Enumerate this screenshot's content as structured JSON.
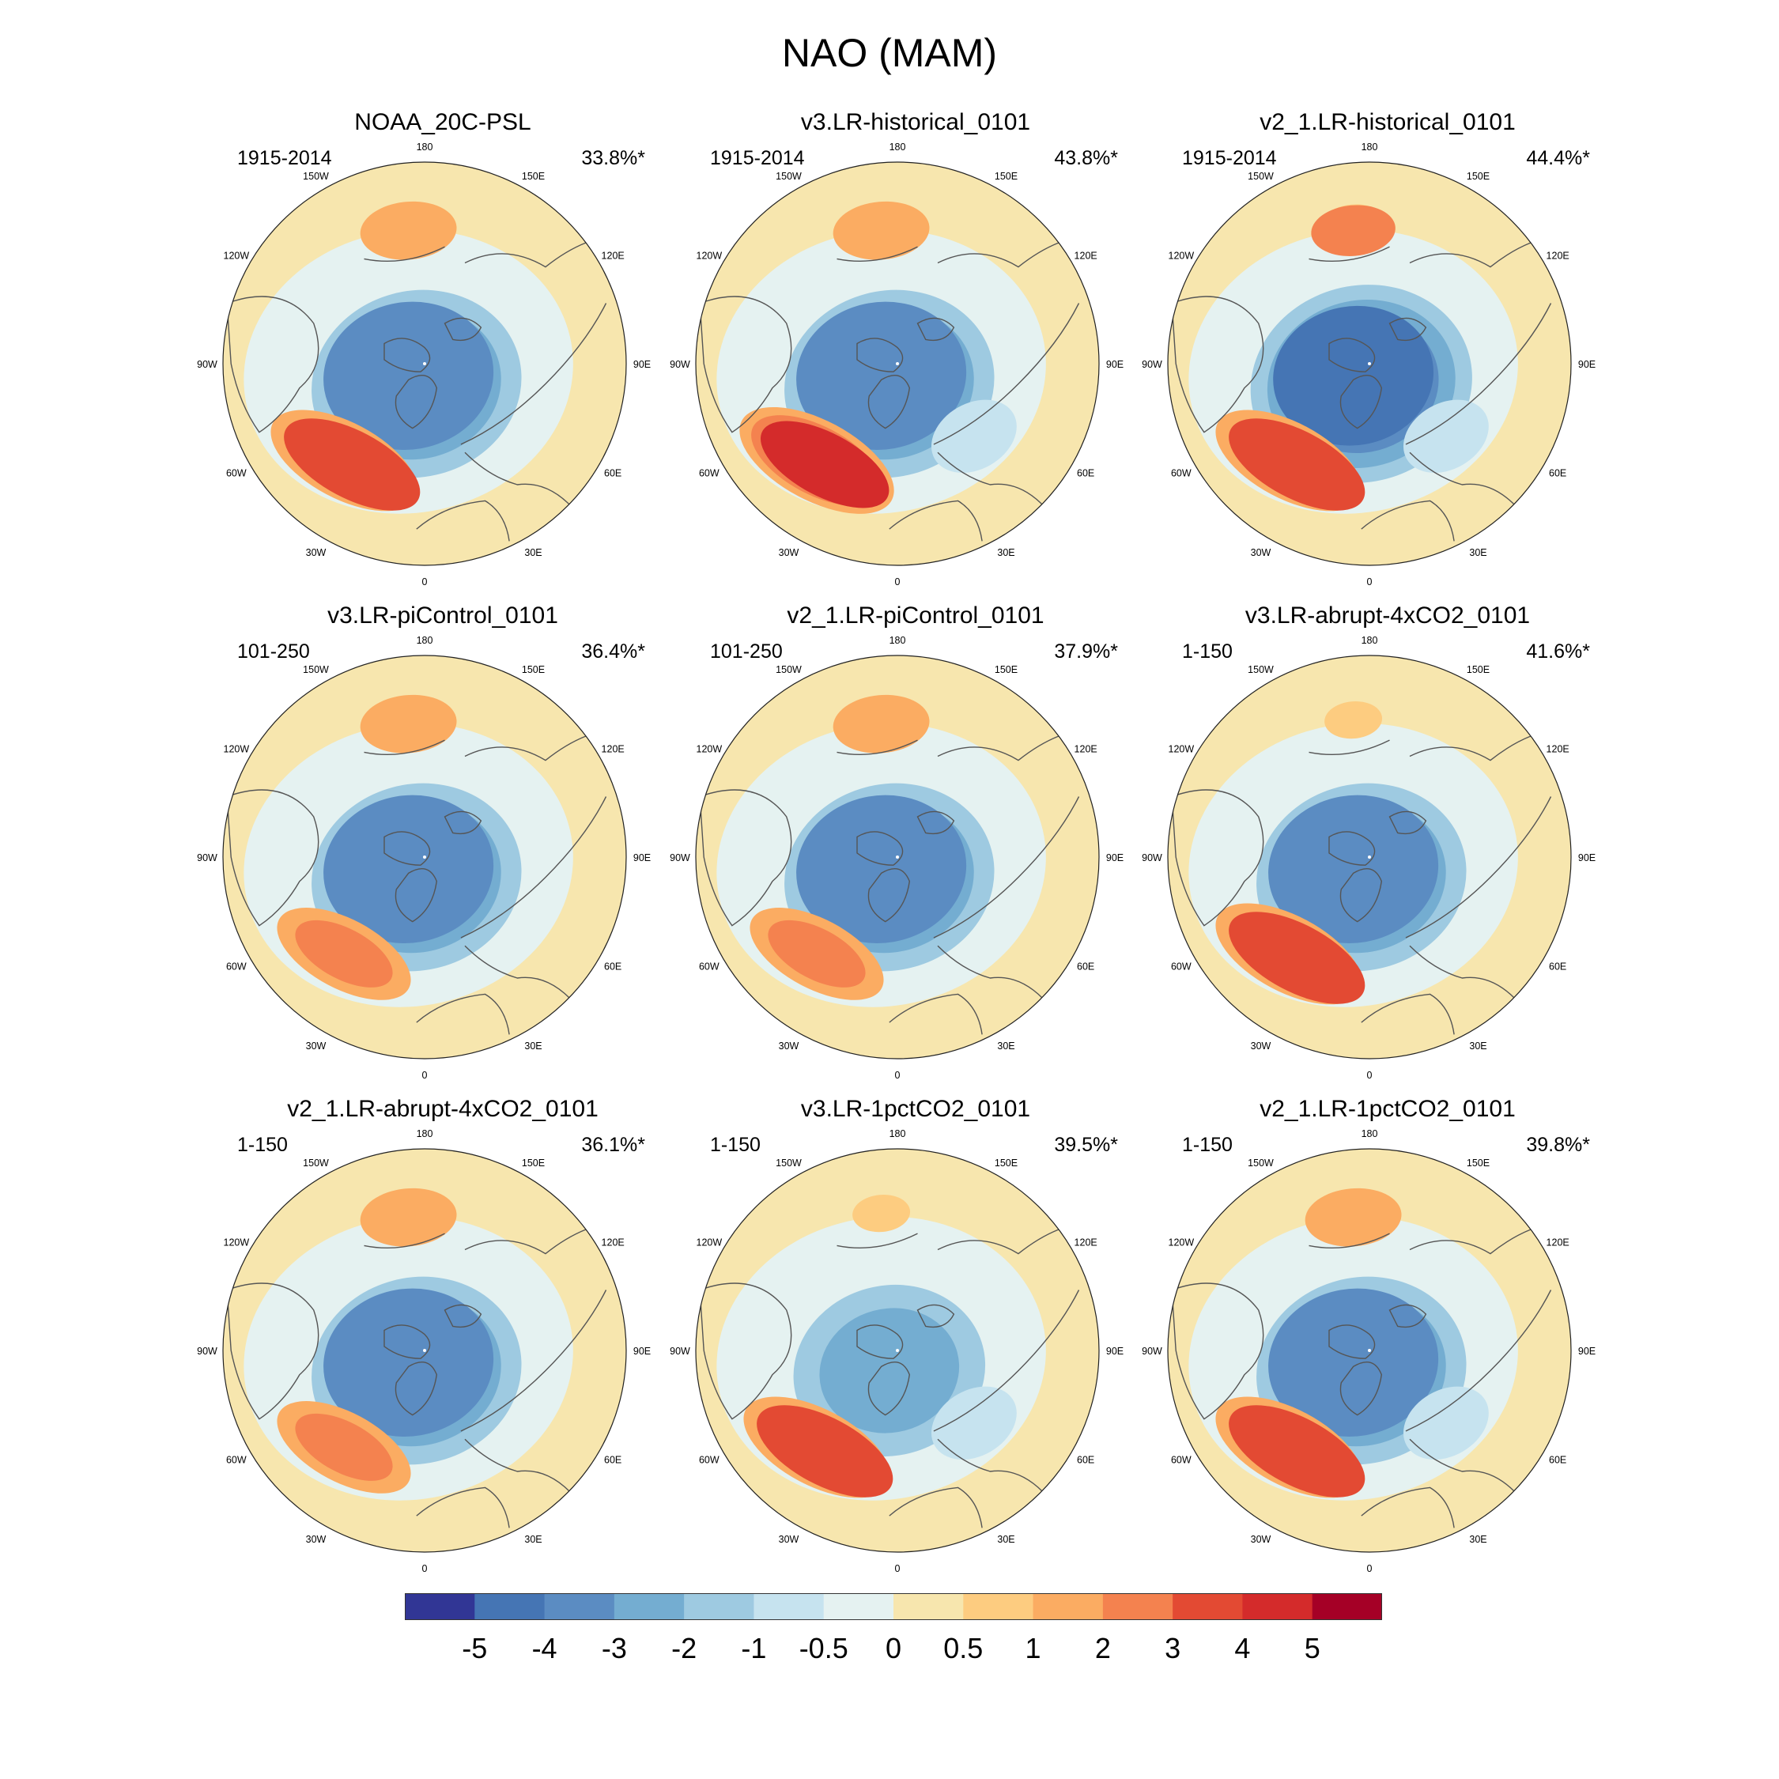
{
  "title": "NAO (MAM)",
  "chart_data": {
    "type": "heatmap",
    "projection": "north-polar-stereographic",
    "panels": [
      {
        "name": "NOAA_20C-PSL",
        "period": "1915-2014",
        "variance": "33.8%*",
        "features": {
          "low": -3.6,
          "azores_high": 3.2,
          "pacific_high": 1.2,
          "ne_atlantic_low": 0.2
        }
      },
      {
        "name": "v3.LR-historical_0101",
        "period": "1915-2014",
        "variance": "43.8%*",
        "features": {
          "low": -3.1,
          "azores_high": 4.2,
          "pacific_high": 1.4,
          "ne_atlantic_low": -0.9
        }
      },
      {
        "name": "v2_1.LR-historical_0101",
        "period": "1915-2014",
        "variance": "44.4%*",
        "features": {
          "low": -4.2,
          "azores_high": 3.4,
          "pacific_high": 2.3,
          "ne_atlantic_low": -0.9
        }
      },
      {
        "name": "v3.LR-piControl_0101",
        "period": "101-250",
        "variance": "36.4%*",
        "features": {
          "low": -3.6,
          "azores_high": 2.8,
          "pacific_high": 1.5,
          "ne_atlantic_low": -0.4
        }
      },
      {
        "name": "v2_1.LR-piControl_0101",
        "period": "101-250",
        "variance": "37.9%*",
        "features": {
          "low": -3.6,
          "azores_high": 2.9,
          "pacific_high": 1.7,
          "ne_atlantic_low": -0.4
        }
      },
      {
        "name": "v3.LR-abrupt-4xCO2_0101",
        "period": "1-150",
        "variance": "41.6%*",
        "features": {
          "low": -3.4,
          "azores_high": 3.6,
          "pacific_high": 0.8,
          "ne_atlantic_low": -0.2
        }
      },
      {
        "name": "v2_1.LR-abrupt-4xCO2_0101",
        "period": "1-150",
        "variance": "36.1%*",
        "features": {
          "low": -3.3,
          "azores_high": 2.6,
          "pacific_high": 1.2,
          "ne_atlantic_low": -0.3
        }
      },
      {
        "name": "v3.LR-1pctCO2_0101",
        "period": "1-150",
        "variance": "39.5%*",
        "features": {
          "low": -2.8,
          "azores_high": 3.1,
          "pacific_high": 0.9,
          "ne_atlantic_low": -0.6
        }
      },
      {
        "name": "v2_1.LR-1pctCO2_0101",
        "period": "1-150",
        "variance": "39.8%*",
        "features": {
          "low": -3.4,
          "azores_high": 3.6,
          "pacific_high": 1.6,
          "ne_atlantic_low": -0.5
        }
      }
    ],
    "longitude_labels": [
      "180",
      "150E",
      "120E",
      "90E",
      "60E",
      "30E",
      "0",
      "30W",
      "60W",
      "90W",
      "120W",
      "150W"
    ],
    "colorbar": {
      "levels": [
        -5,
        -4,
        -3,
        -2,
        -1,
        -0.5,
        0,
        0.5,
        1,
        2,
        3,
        4,
        5
      ],
      "tick_labels": [
        "-5",
        "-4",
        "-3",
        "-2",
        "-1",
        "-0.5",
        "0",
        "0.5",
        "1",
        "2",
        "3",
        "4",
        "5"
      ],
      "colors": [
        "#313695",
        "#4575b4",
        "#5b8cc2",
        "#74add1",
        "#9ecae1",
        "#c6e3ef",
        "#e5f2f1",
        "#f7e6ae",
        "#fdcc80",
        "#fbac62",
        "#f4824f",
        "#e34a33",
        "#d42b2b",
        "#a50026"
      ]
    }
  }
}
